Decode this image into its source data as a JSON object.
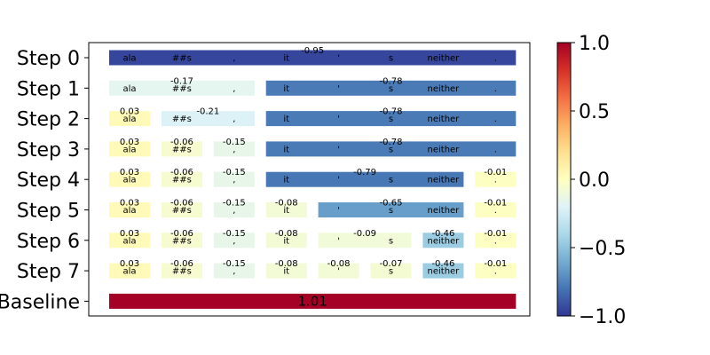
{
  "chart_data": {
    "type": "heatmap",
    "tokens": [
      "ala",
      "##s",
      ",",
      "it",
      "'",
      "s",
      "neither",
      "."
    ],
    "rows": [
      {
        "label": "Step 0",
        "segments": [
          {
            "start": 0,
            "end": 7,
            "value": -0.95
          }
        ]
      },
      {
        "label": "Step 1",
        "segments": [
          {
            "start": 0,
            "end": 2,
            "value": -0.17
          },
          {
            "start": 3,
            "end": 7,
            "value": -0.78
          }
        ]
      },
      {
        "label": "Step 2",
        "segments": [
          {
            "start": 0,
            "end": 0,
            "value": 0.03
          },
          {
            "start": 1,
            "end": 2,
            "value": -0.21
          },
          {
            "start": 3,
            "end": 7,
            "value": -0.78
          }
        ]
      },
      {
        "label": "Step 3",
        "segments": [
          {
            "start": 0,
            "end": 0,
            "value": 0.03
          },
          {
            "start": 1,
            "end": 1,
            "value": -0.06
          },
          {
            "start": 2,
            "end": 2,
            "value": -0.15
          },
          {
            "start": 3,
            "end": 7,
            "value": -0.78
          }
        ]
      },
      {
        "label": "Step 4",
        "segments": [
          {
            "start": 0,
            "end": 0,
            "value": 0.03
          },
          {
            "start": 1,
            "end": 1,
            "value": -0.06
          },
          {
            "start": 2,
            "end": 2,
            "value": -0.15
          },
          {
            "start": 3,
            "end": 6,
            "value": -0.79
          },
          {
            "start": 7,
            "end": 7,
            "value": -0.01
          }
        ]
      },
      {
        "label": "Step 5",
        "segments": [
          {
            "start": 0,
            "end": 0,
            "value": 0.03
          },
          {
            "start": 1,
            "end": 1,
            "value": -0.06
          },
          {
            "start": 2,
            "end": 2,
            "value": -0.15
          },
          {
            "start": 3,
            "end": 3,
            "value": -0.08
          },
          {
            "start": 4,
            "end": 6,
            "value": -0.65
          },
          {
            "start": 7,
            "end": 7,
            "value": -0.01
          }
        ]
      },
      {
        "label": "Step 6",
        "segments": [
          {
            "start": 0,
            "end": 0,
            "value": 0.03
          },
          {
            "start": 1,
            "end": 1,
            "value": -0.06
          },
          {
            "start": 2,
            "end": 2,
            "value": -0.15
          },
          {
            "start": 3,
            "end": 3,
            "value": -0.08
          },
          {
            "start": 4,
            "end": 5,
            "value": -0.09
          },
          {
            "start": 6,
            "end": 6,
            "value": -0.46
          },
          {
            "start": 7,
            "end": 7,
            "value": -0.01
          }
        ]
      },
      {
        "label": "Step 7",
        "segments": [
          {
            "start": 0,
            "end": 0,
            "value": 0.03
          },
          {
            "start": 1,
            "end": 1,
            "value": -0.06
          },
          {
            "start": 2,
            "end": 2,
            "value": -0.15
          },
          {
            "start": 3,
            "end": 3,
            "value": -0.08
          },
          {
            "start": 4,
            "end": 4,
            "value": -0.08
          },
          {
            "start": 5,
            "end": 5,
            "value": -0.07
          },
          {
            "start": 6,
            "end": 6,
            "value": -0.46
          },
          {
            "start": 7,
            "end": 7,
            "value": -0.01
          }
        ]
      }
    ],
    "baseline": {
      "label": "Baseline",
      "value": 1.01
    },
    "colorbar": {
      "colormap": "RdYlBu_r",
      "range": [
        -1.0,
        1.0
      ],
      "ticks": [
        1.0,
        0.5,
        0.0,
        -0.5,
        -1.0
      ],
      "tick_labels": [
        "1.0",
        "0.5",
        "0.0",
        "−0.5",
        "−1.0"
      ]
    }
  }
}
